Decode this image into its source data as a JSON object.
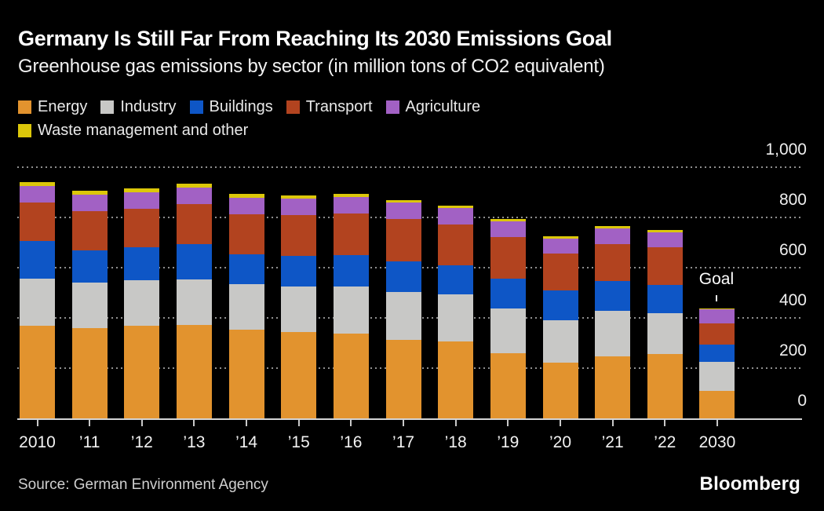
{
  "header": {
    "title": "Germany Is Still Far From Reaching Its 2030 Emissions Goal",
    "subtitle": "Greenhouse gas emissions by sector (in million tons of CO2 equivalent)"
  },
  "footer": {
    "source": "Source: German Environment Agency",
    "brand": "Bloomberg"
  },
  "chart_data": {
    "type": "bar",
    "stacked": true,
    "title": "Germany Is Still Far From Reaching Its 2030 Emissions Goal",
    "subtitle": "Greenhouse gas emissions by sector (in million tons of CO2 equivalent)",
    "xlabel": "",
    "ylabel": "million tons of CO2 equivalent",
    "ylim": [
      0,
      1000
    ],
    "yticks": [
      0,
      200,
      400,
      600,
      800,
      1000
    ],
    "ytick_labels": [
      "0",
      "200",
      "400",
      "600",
      "800",
      "1,000"
    ],
    "grid": "dotted horizontal",
    "legend_position": "top",
    "categories": [
      "2010",
      "’11",
      "’12",
      "’13",
      "’14",
      "’15",
      "’16",
      "’17",
      "’18",
      "’19",
      "’20",
      "’21",
      "’22",
      "2030"
    ],
    "series": [
      {
        "name": "Energy",
        "color": "#e2932e",
        "values": [
          369,
          358,
          369,
          373,
          354,
          344,
          338,
          313,
          305,
          258,
          221,
          247,
          256,
          108
        ]
      },
      {
        "name": "Industry",
        "color": "#c8c8c6",
        "values": [
          188,
          184,
          180,
          181,
          180,
          182,
          186,
          189,
          188,
          178,
          169,
          181,
          164,
          118
        ]
      },
      {
        "name": "Buildings",
        "color": "#0e56c6",
        "values": [
          149,
          127,
          131,
          141,
          118,
          121,
          126,
          123,
          117,
          121,
          119,
          119,
          112,
          67
        ]
      },
      {
        "name": "Transport",
        "color": "#b2431f",
        "values": [
          153,
          155,
          153,
          157,
          159,
          161,
          165,
          168,
          162,
          164,
          146,
          148,
          148,
          85
        ]
      },
      {
        "name": "Agriculture",
        "color": "#a261c4",
        "values": [
          65,
          66,
          66,
          67,
          68,
          68,
          67,
          66,
          64,
          63,
          62,
          61,
          62,
          56
        ]
      },
      {
        "name": "Waste management and other",
        "color": "#dcc70a",
        "values": [
          18,
          17,
          16,
          15,
          14,
          13,
          12,
          11,
          11,
          10,
          9,
          9,
          8,
          4
        ]
      }
    ],
    "annotations": [
      {
        "text": "Goal",
        "category": "2030"
      }
    ]
  }
}
